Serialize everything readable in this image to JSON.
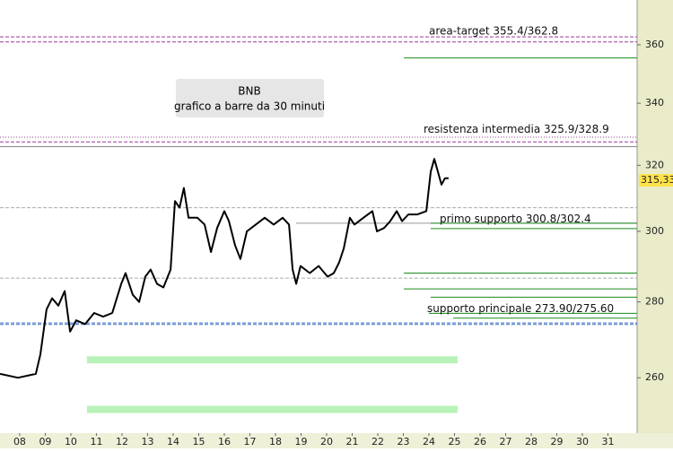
{
  "chart_data": {
    "type": "line",
    "title": "BNB",
    "subtitle": "grafico a barre da 30 minuti",
    "log_scale": true,
    "x": [
      7.23,
      7.93,
      8.63,
      8.81,
      9.05,
      9.27,
      9.51,
      9.76,
      9.97,
      10.21,
      10.56,
      10.91,
      11.26,
      11.62,
      11.97,
      12.14,
      12.42,
      12.67,
      12.91,
      13.12,
      13.37,
      13.62,
      13.9,
      14.07,
      14.25,
      14.42,
      14.6,
      14.95,
      15.23,
      15.48,
      15.72,
      16.0,
      16.18,
      16.42,
      16.63,
      16.88,
      17.23,
      17.58,
      17.93,
      18.28,
      18.53,
      18.67,
      18.81,
      18.98,
      19.34,
      19.69,
      20.04,
      20.28,
      20.49,
      20.67,
      20.91,
      21.09,
      21.44,
      21.79,
      21.97,
      22.25,
      22.49,
      22.74,
      22.95,
      23.2,
      23.55,
      23.9,
      24.07,
      24.21,
      24.35,
      24.49,
      24.63,
      24.77
    ],
    "series": [
      {
        "color": "#000000",
        "values": [
          261,
          260,
          261,
          266,
          278,
          281,
          279,
          283,
          272,
          275,
          274,
          277,
          276,
          277,
          285,
          288,
          282,
          280,
          287,
          289,
          285,
          284,
          289,
          309,
          307,
          313,
          304,
          304,
          302,
          294,
          301,
          306,
          303,
          296,
          292,
          300,
          302,
          304,
          302,
          304,
          302,
          289,
          285,
          290,
          288,
          290,
          287,
          288,
          291,
          295,
          304,
          302,
          304,
          306,
          300,
          301,
          303,
          306,
          303,
          305,
          305,
          306,
          318,
          322,
          318,
          314,
          316,
          316
        ]
      }
    ],
    "last_price": {
      "value": 315.33,
      "label": "315,33"
    },
    "xlim": [
      7.23,
      32.14
    ],
    "xticks": [
      {
        "value": 8,
        "label": "08"
      },
      {
        "value": 9,
        "label": "09"
      },
      10,
      11,
      12,
      13,
      14,
      15,
      16,
      17,
      18,
      19,
      20,
      21,
      22,
      23,
      24,
      25,
      26,
      27,
      28,
      29,
      30,
      31
    ],
    "ylim": [
      246.3,
      376.1
    ],
    "yticks": [
      260,
      280,
      300,
      320,
      340,
      360
    ],
    "levels": [
      {
        "value": 362.8,
        "color": "#9b3a9b",
        "style": "dashed"
      },
      {
        "value": 361,
        "color": "#9b3a9b",
        "style": "dashed"
      },
      {
        "value": 355.4,
        "color": "#1a8a1a",
        "style": "solid",
        "x_start": 23.02
      },
      {
        "value": 328.9,
        "color": "#9b3a9b",
        "style": "dotted"
      },
      {
        "value": 327.4,
        "color": "#9b3a9b",
        "style": "dashed"
      },
      {
        "value": 325.9,
        "color": "#888888",
        "style": "solid"
      },
      {
        "value": 307,
        "color": "#aaaaaa",
        "style": "dashed"
      },
      {
        "value": 302.4,
        "color": "#999999",
        "style": "solid",
        "x_start": 18.81
      },
      {
        "value": 302.4,
        "color": "#1a8a1a",
        "style": "solid",
        "x_start": 24.07
      },
      {
        "value": 300.8,
        "color": "#1a8a1a",
        "style": "solid",
        "x_start": 24.07
      },
      {
        "value": 288,
        "color": "#1a8a1a",
        "style": "solid",
        "x_start": 23.02
      },
      {
        "value": 286.6,
        "color": "#aaaaaa",
        "style": "dashed"
      },
      {
        "value": 283.6,
        "color": "#1a8a1a",
        "style": "solid",
        "x_start": 23.02
      },
      {
        "value": 281.3,
        "color": "#1a8a1a",
        "style": "solid",
        "x_start": 24.07
      },
      {
        "value": 276.9,
        "color": "#1a8a1a",
        "style": "solid",
        "x_start": 24.0
      },
      {
        "value": 275.6,
        "color": "#1a8a1a",
        "style": "solid",
        "x_start": 24.95
      },
      {
        "value": 274.3,
        "color": "#3a6fc4",
        "style": "dashed"
      },
      {
        "value": 273.9,
        "color": "#3a6fc4",
        "style": "dashed"
      },
      {
        "value": 264.6,
        "color": "#b8f2b8",
        "style": "band",
        "x_start": 10.63,
        "x_end": 25.12
      },
      {
        "value": 252.1,
        "color": "#b8f2b8",
        "style": "band",
        "x_start": 10.63,
        "x_end": 25.12
      }
    ],
    "annotations": [
      {
        "text": "area-target 355.4/362.8",
        "x": 24.0,
        "y": 364.8
      },
      {
        "text": "resistenza intermedia 325.9/328.9",
        "x": 23.79,
        "y": 331.4
      },
      {
        "text": "primo supporto 300.8/302.4",
        "x": 24.42,
        "y": 303.6
      },
      {
        "text": "supporto principale 273.90/275.60",
        "x": 23.93,
        "y": 278.1
      }
    ]
  }
}
